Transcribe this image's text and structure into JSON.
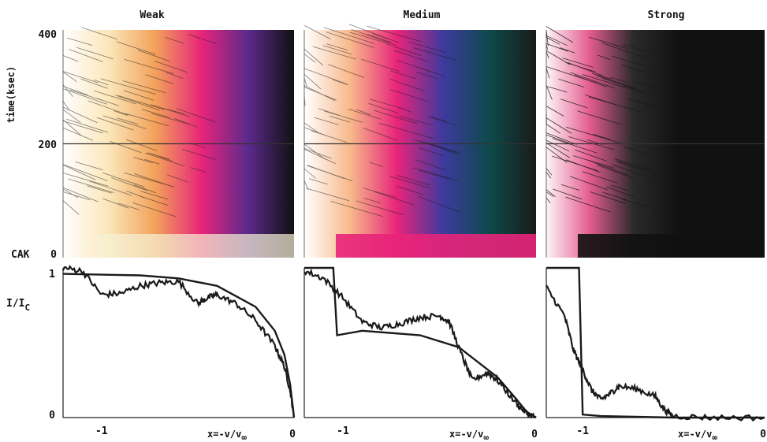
{
  "chart_data": {
    "type": "line",
    "panels": [
      {
        "title": "Weak",
        "gradient": [
          "#ffffff",
          "#fbe6b8",
          "#f2a15a",
          "#e8247a",
          "#5b2a8c",
          "#111111"
        ]
      },
      {
        "title": "Medium",
        "gradient": [
          "#ffffff",
          "#f7b88a",
          "#e8247a",
          "#3d3a9e",
          "#0d4a4a",
          "#1a1a1a"
        ]
      },
      {
        "title": "Strong",
        "gradient": [
          "#fff5f5",
          "#e35b8f",
          "#2a2a2a",
          "#111111",
          "#111111",
          "#111111"
        ]
      }
    ],
    "dynamic_spectra": {
      "ylabel": "time(ksec)",
      "y_ticks": [
        "400",
        "200",
        "0"
      ],
      "y_start_label": "CAK",
      "ylim": [
        0,
        400
      ],
      "highlight_time": 200
    },
    "profiles": {
      "ylabel_main": "I/I",
      "ylabel_sub": "C",
      "y_ticks": [
        "1",
        "0"
      ],
      "ylim": [
        0,
        1
      ],
      "xlim": [
        -1.2,
        0
      ],
      "x_ticks": [
        "-1",
        "0"
      ],
      "xlabel_main": "x=-v/v",
      "xlabel_sub": "∞",
      "series": [
        {
          "panel": 0,
          "cak": [
            [
              -1.2,
              0.96
            ],
            [
              -0.8,
              0.95
            ],
            [
              -0.6,
              0.93
            ],
            [
              -0.4,
              0.88
            ],
            [
              -0.2,
              0.74
            ],
            [
              -0.1,
              0.58
            ],
            [
              -0.05,
              0.42
            ],
            [
              -0.02,
              0.22
            ],
            [
              0.0,
              0.0
            ]
          ],
          "mean": [
            [
              -1.2,
              1.0
            ],
            [
              -1.1,
              0.98
            ],
            [
              -1.0,
              0.82
            ],
            [
              -0.9,
              0.83
            ],
            [
              -0.8,
              0.88
            ],
            [
              -0.7,
              0.9
            ],
            [
              -0.6,
              0.91
            ],
            [
              -0.5,
              0.76
            ],
            [
              -0.45,
              0.8
            ],
            [
              -0.4,
              0.82
            ],
            [
              -0.3,
              0.76
            ],
            [
              -0.2,
              0.65
            ],
            [
              -0.1,
              0.48
            ],
            [
              -0.05,
              0.34
            ],
            [
              -0.02,
              0.18
            ],
            [
              0.0,
              0.0
            ]
          ]
        },
        {
          "panel": 1,
          "cak": [
            [
              -1.2,
              1.0
            ],
            [
              -1.05,
              1.0
            ],
            [
              -1.03,
              0.55
            ],
            [
              -0.9,
              0.58
            ],
            [
              -0.6,
              0.55
            ],
            [
              -0.4,
              0.47
            ],
            [
              -0.2,
              0.27
            ],
            [
              -0.1,
              0.12
            ],
            [
              -0.05,
              0.04
            ],
            [
              0.0,
              0.0
            ]
          ],
          "mean": [
            [
              -1.2,
              0.98
            ],
            [
              -1.1,
              0.93
            ],
            [
              -1.0,
              0.8
            ],
            [
              -0.9,
              0.64
            ],
            [
              -0.8,
              0.6
            ],
            [
              -0.7,
              0.63
            ],
            [
              -0.6,
              0.67
            ],
            [
              -0.5,
              0.68
            ],
            [
              -0.45,
              0.64
            ],
            [
              -0.38,
              0.4
            ],
            [
              -0.33,
              0.25
            ],
            [
              -0.25,
              0.3
            ],
            [
              -0.2,
              0.25
            ],
            [
              -0.1,
              0.09
            ],
            [
              -0.05,
              0.03
            ],
            [
              0.0,
              0.0
            ]
          ]
        },
        {
          "panel": 2,
          "cak": [
            [
              -1.2,
              1.0
            ],
            [
              -1.02,
              1.0
            ],
            [
              -1.0,
              0.02
            ],
            [
              -0.9,
              0.01
            ],
            [
              -0.5,
              0.0
            ],
            [
              0.0,
              0.0
            ]
          ],
          "mean": [
            [
              -1.2,
              0.87
            ],
            [
              -1.1,
              0.68
            ],
            [
              -1.05,
              0.45
            ],
            [
              -1.0,
              0.32
            ],
            [
              -0.95,
              0.18
            ],
            [
              -0.9,
              0.12
            ],
            [
              -0.85,
              0.16
            ],
            [
              -0.8,
              0.21
            ],
            [
              -0.7,
              0.19
            ],
            [
              -0.6,
              0.14
            ],
            [
              -0.55,
              0.05
            ],
            [
              -0.5,
              0.01
            ],
            [
              -0.3,
              0.0
            ],
            [
              0.0,
              0.0
            ]
          ]
        }
      ]
    }
  }
}
